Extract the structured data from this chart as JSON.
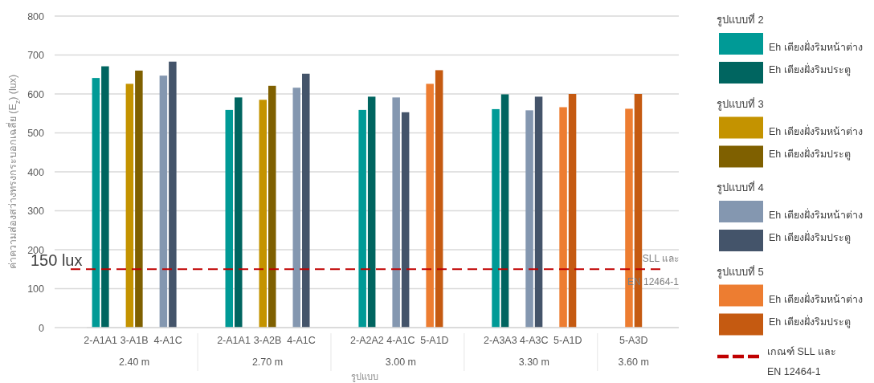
{
  "chart_data": {
    "type": "bar",
    "ylabel": "ค่าความส่องสว่างทรงกระบอกเฉลี่ย (E$_{z}$) (lux)",
    "xlabel": "รูปแบบ",
    "categories": [
      "2-A1A1",
      "3-A1B",
      "4-A1C",
      "2-A1A1",
      "3-A2B",
      "4-A1C",
      "2-A2A2",
      "4-A1C",
      "5-A1D",
      "2-A3A3",
      "4-A3C",
      "5-A1D",
      "5-A3D"
    ],
    "series": [
      {
        "name": "Eh เตียงฝั่งริมหน้าต่าง",
        "color": "#009a96",
        "values": [
          641,
          null,
          null,
          559,
          null,
          null,
          559,
          null,
          null,
          561,
          null,
          null,
          null
        ]
      },
      {
        "name": "Eh เตียงฝั่งริมประตู",
        "color": "#006560",
        "values": [
          671,
          null,
          null,
          591,
          null,
          null,
          593,
          null,
          null,
          599,
          null,
          null,
          null
        ]
      },
      {
        "name": "Eh เตียงฝั่งริมหน้าต่าง",
        "color": "#c49300",
        "values": [
          null,
          626,
          null,
          null,
          585,
          null,
          null,
          null,
          null,
          null,
          null,
          null,
          null
        ]
      },
      {
        "name": "Eh เตียงฝั่งริมประตู",
        "color": "#7f6000",
        "values": [
          null,
          660,
          null,
          null,
          621,
          null,
          null,
          null,
          null,
          null,
          null,
          null,
          null
        ]
      },
      {
        "name": "Eh เตียงฝั่งริมหน้าต่าง",
        "color": "#8497b0",
        "values": [
          null,
          null,
          647,
          null,
          null,
          616,
          null,
          591,
          null,
          null,
          558,
          null,
          null
        ]
      },
      {
        "name": "Eh เตียงฝั่งริมประตู",
        "color": "#44546a",
        "values": [
          null,
          null,
          683,
          null,
          null,
          652,
          null,
          553,
          null,
          null,
          593,
          null,
          null
        ]
      },
      {
        "name": "Eh เตียงฝั่งริมหน้าต่าง",
        "color": "#ed7d31",
        "values": [
          null,
          null,
          null,
          null,
          null,
          null,
          null,
          null,
          626,
          null,
          null,
          566,
          562
        ]
      },
      {
        "name": "Eh เตียงฝั่งริมประตู",
        "color": "#c55a11",
        "values": [
          null,
          null,
          null,
          null,
          null,
          null,
          null,
          null,
          661,
          null,
          null,
          600,
          600
        ]
      }
    ],
    "ylim": [
      0,
      800
    ],
    "yticks": [
      0,
      100,
      200,
      300,
      400,
      500,
      600,
      700,
      800
    ],
    "grid": "y",
    "legend": "right",
    "ref_lines": [
      {
        "axis": "y",
        "value": 150,
        "label": "SLL และ\nEN 12464-1",
        "color": "#c00000",
        "line_style": "dashed"
      }
    ],
    "annotations": [
      "150 lux",
      "เกณฑ์ SLL และ\nEN 12464-1",
      "2.40 m",
      "2.70 m",
      "3.00 m",
      "3.30 m",
      "3.60 m",
      "รูปแบบที่ 2",
      "รูปแบบที่ 3",
      "รูปแบบที่ 4",
      "รูปแบบที่ 5"
    ]
  }
}
